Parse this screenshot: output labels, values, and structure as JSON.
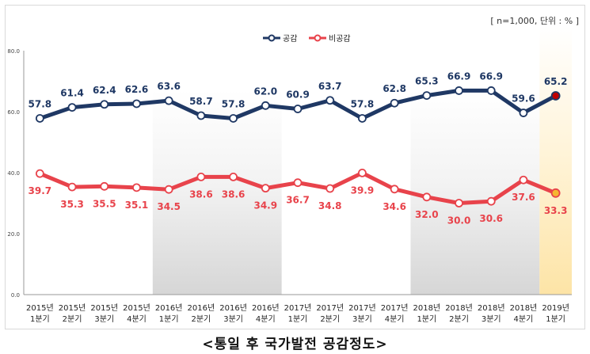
{
  "note": "[ n=1,000, 단위 : % ]",
  "caption": "<통일 후 국가발전 공감정도>",
  "colors": {
    "agree": "#1f3864",
    "disagree": "#e8434b",
    "last_agree": "#c00000",
    "last_disagree": "#f5b731"
  },
  "chart_data": {
    "type": "line",
    "title": "<통일 후 국가발전 공감정도>",
    "xlabel": "",
    "ylabel": "",
    "ylim": [
      0,
      80
    ],
    "yticks": [
      "0.0",
      "20.0",
      "40.0",
      "60.0",
      "80.0"
    ],
    "ytick_values": [
      0,
      20,
      40,
      60,
      80
    ],
    "categories": [
      [
        "2015년",
        "1분기"
      ],
      [
        "2015년",
        "2분기"
      ],
      [
        "2015년",
        "3분기"
      ],
      [
        "2015년",
        "4분기"
      ],
      [
        "2016년",
        "1분기"
      ],
      [
        "2016년",
        "2분기"
      ],
      [
        "2016년",
        "3분기"
      ],
      [
        "2016년",
        "4분기"
      ],
      [
        "2017년",
        "1분기"
      ],
      [
        "2017년",
        "2분기"
      ],
      [
        "2017년",
        "3분기"
      ],
      [
        "2017년",
        "4분기"
      ],
      [
        "2018년",
        "1분기"
      ],
      [
        "2018년",
        "2분기"
      ],
      [
        "2018년",
        "3분기"
      ],
      [
        "2018년",
        "4분기"
      ],
      [
        "2019년",
        "1분기"
      ]
    ],
    "series": [
      {
        "name": "공감",
        "labels": [
          "57.8",
          "61.4",
          "62.4",
          "62.6",
          "63.6",
          "58.7",
          "57.8",
          "62.0",
          "60.9",
          "63.7",
          "57.8",
          "62.8",
          "65.3",
          "66.9",
          "66.9",
          "59.6",
          "65.2"
        ],
        "values": [
          57.8,
          61.4,
          62.4,
          62.6,
          63.6,
          58.7,
          57.8,
          62.0,
          60.9,
          63.7,
          57.8,
          62.8,
          65.3,
          66.9,
          66.9,
          59.6,
          65.2
        ]
      },
      {
        "name": "비공감",
        "labels": [
          "39.7",
          "35.3",
          "35.5",
          "35.1",
          "34.5",
          "38.6",
          "38.6",
          "34.9",
          "36.7",
          "34.8",
          "39.9",
          "34.6",
          "32.0",
          "30.0",
          "30.6",
          "37.6",
          "33.3"
        ],
        "values": [
          39.7,
          35.3,
          35.5,
          35.1,
          34.5,
          38.6,
          38.6,
          34.9,
          36.7,
          34.8,
          39.9,
          34.6,
          32.0,
          30.0,
          30.6,
          37.6,
          33.3
        ]
      }
    ],
    "legend": "top-center",
    "grid": false
  }
}
